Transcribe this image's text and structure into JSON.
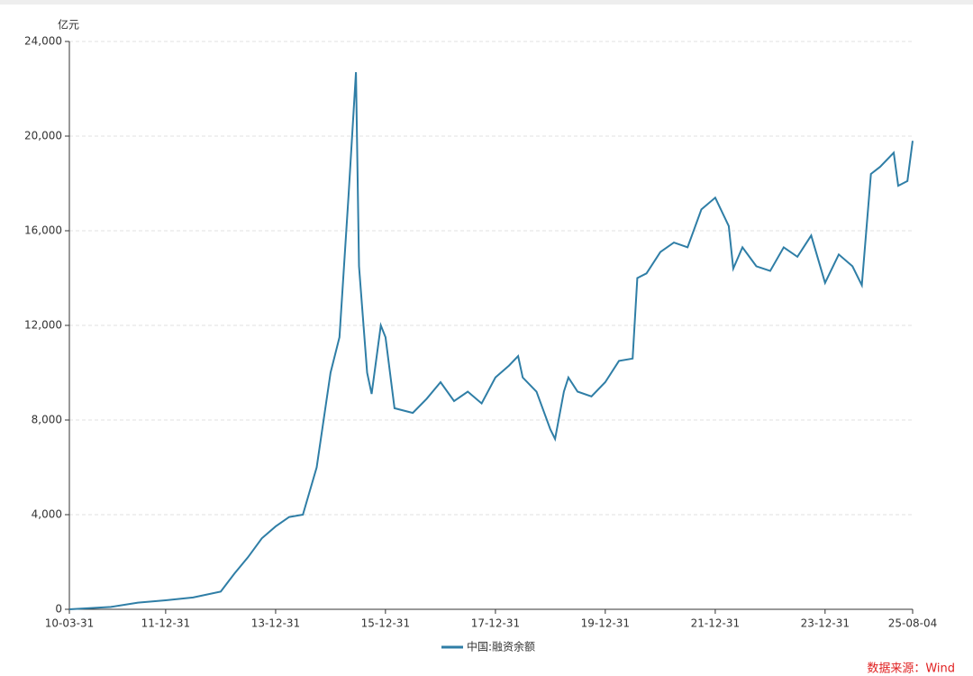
{
  "chart_data": {
    "type": "line",
    "y_unit": "亿元",
    "source": "数据来源：Wind",
    "x": [
      "10-03-31",
      "10-12-31",
      "11-06-30",
      "11-12-31",
      "12-06-30",
      "12-12-31",
      "13-03-31",
      "13-06-30",
      "13-09-30",
      "13-12-31",
      "14-03-31",
      "14-06-30",
      "14-09-30",
      "14-12-31",
      "15-02-28",
      "15-04-30",
      "15-06-18",
      "15-07-08",
      "15-08-31",
      "15-09-30",
      "15-11-30",
      "15-12-31",
      "16-02-29",
      "16-06-30",
      "16-09-30",
      "16-12-31",
      "17-03-31",
      "17-06-30",
      "17-09-30",
      "17-12-31",
      "18-03-31",
      "18-05-31",
      "18-06-30",
      "18-09-30",
      "18-12-31",
      "19-01-31",
      "19-03-31",
      "19-04-30",
      "19-06-30",
      "19-09-30",
      "19-12-31",
      "20-03-31",
      "20-06-30",
      "20-07-31",
      "20-09-30",
      "20-12-31",
      "21-03-31",
      "21-06-30",
      "21-09-30",
      "21-12-31",
      "22-03-31",
      "22-04-30",
      "22-06-30",
      "22-09-30",
      "22-12-31",
      "23-03-31",
      "23-06-30",
      "23-09-30",
      "23-12-31",
      "24-03-31",
      "24-06-30",
      "24-08-31",
      "24-10-31",
      "24-12-31",
      "25-03-31",
      "25-04-30",
      "25-06-30",
      "25-08-04"
    ],
    "series": [
      {
        "name": "中国:融资余额",
        "color": "#2f7ea6",
        "values": [
          0,
          100,
          280,
          380,
          500,
          750,
          1500,
          2200,
          3000,
          3500,
          3900,
          4000,
          6000,
          10000,
          11500,
          17500,
          22700,
          14500,
          10000,
          9100,
          12000,
          11500,
          8500,
          8300,
          8900,
          9600,
          8800,
          9200,
          8700,
          9800,
          10300,
          10700,
          9800,
          9200,
          7600,
          7200,
          9200,
          9800,
          9200,
          9000,
          9600,
          10500,
          10600,
          14000,
          14200,
          15100,
          15500,
          15300,
          16900,
          17400,
          16200,
          14400,
          15300,
          14500,
          14300,
          15300,
          14900,
          15800,
          13800,
          15000,
          14500,
          13700,
          18400,
          18700,
          19300,
          17900,
          18100,
          19800
        ]
      }
    ],
    "xlim": [
      "10-03-31",
      "25-08-04"
    ],
    "xticks": [
      "10-03-31",
      "11-12-31",
      "13-12-31",
      "15-12-31",
      "17-12-31",
      "19-12-31",
      "21-12-31",
      "23-12-31",
      "25-08-04"
    ],
    "ylim": [
      0,
      24000
    ],
    "yticks": [
      0,
      {
        "value": 4000,
        "label": "4,000"
      },
      {
        "value": 8000,
        "label": "8,000"
      },
      {
        "value": 12000,
        "label": "12,000"
      },
      {
        "value": 16000,
        "label": "16,000"
      },
      {
        "value": 20000,
        "label": "20,000"
      },
      {
        "value": 24000,
        "label": "24,000"
      }
    ],
    "grid": true
  }
}
